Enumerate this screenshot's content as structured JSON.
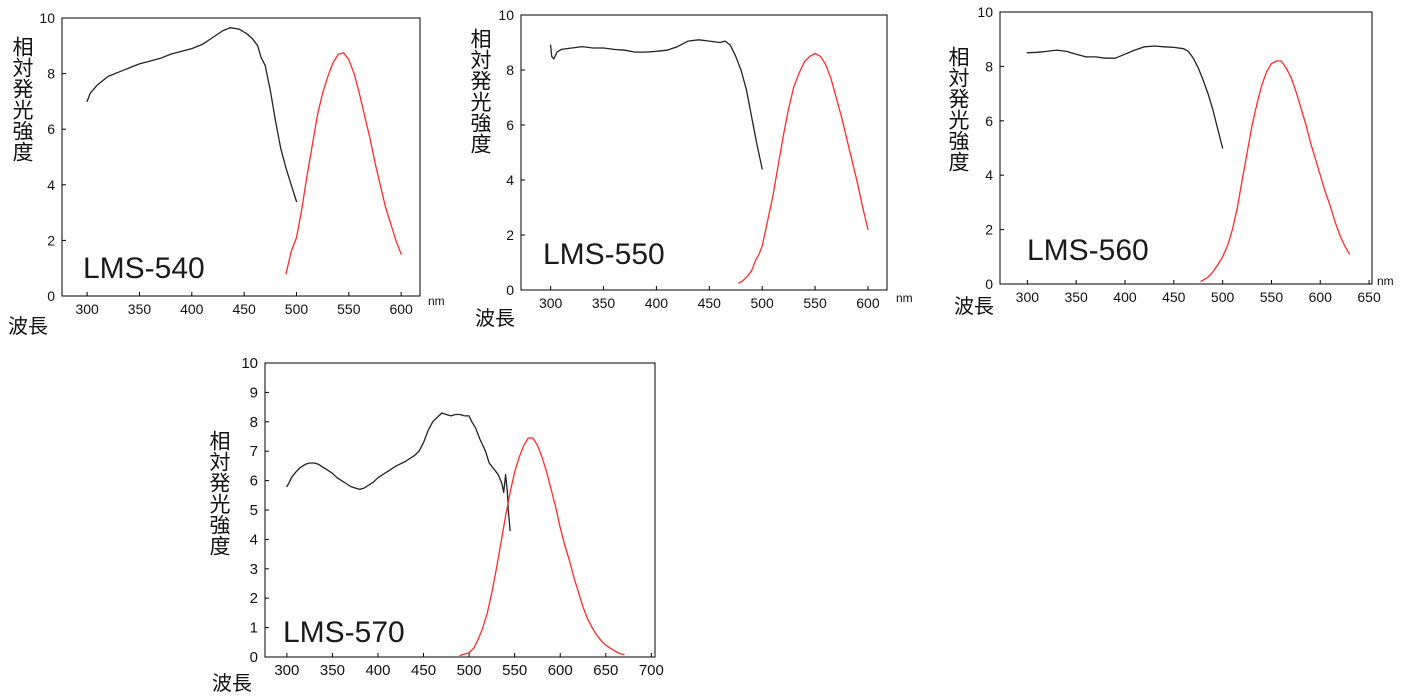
{
  "chart_data": [
    {
      "type": "line",
      "annotation": "LMS-540",
      "ylabel": "相対発光強度",
      "xlabel": "波長",
      "x_unit": "nm",
      "xlim": [
        276,
        618
      ],
      "ylim": [
        0,
        10
      ],
      "x_ticks": [
        300,
        350,
        400,
        450,
        500,
        550,
        600
      ],
      "y_ticks": [
        0,
        2,
        4,
        6,
        8,
        10
      ],
      "grid": false,
      "series": [
        {
          "color": "#222222",
          "points": [
            [
              300,
              7.0
            ],
            [
              303,
              7.3
            ],
            [
              310,
              7.6
            ],
            [
              320,
              7.9
            ],
            [
              330,
              8.05
            ],
            [
              340,
              8.2
            ],
            [
              350,
              8.35
            ],
            [
              360,
              8.45
            ],
            [
              370,
              8.55
            ],
            [
              380,
              8.7
            ],
            [
              390,
              8.8
            ],
            [
              400,
              8.9
            ],
            [
              410,
              9.05
            ],
            [
              420,
              9.3
            ],
            [
              430,
              9.55
            ],
            [
              437,
              9.65
            ],
            [
              445,
              9.6
            ],
            [
              452,
              9.45
            ],
            [
              458,
              9.25
            ],
            [
              463,
              9.0
            ],
            [
              466,
              8.6
            ],
            [
              470,
              8.3
            ],
            [
              475,
              7.4
            ],
            [
              480,
              6.3
            ],
            [
              485,
              5.3
            ],
            [
              490,
              4.6
            ],
            [
              495,
              4.0
            ],
            [
              500,
              3.4
            ]
          ]
        },
        {
          "color": "#ff2a2a",
          "points": [
            [
              490,
              0.8
            ],
            [
              495,
              1.6
            ],
            [
              500,
              2.1
            ],
            [
              505,
              3.1
            ],
            [
              510,
              4.3
            ],
            [
              515,
              5.4
            ],
            [
              520,
              6.5
            ],
            [
              525,
              7.3
            ],
            [
              530,
              7.9
            ],
            [
              535,
              8.4
            ],
            [
              540,
              8.7
            ],
            [
              545,
              8.75
            ],
            [
              550,
              8.5
            ],
            [
              555,
              8.0
            ],
            [
              560,
              7.3
            ],
            [
              565,
              6.5
            ],
            [
              570,
              5.7
            ],
            [
              575,
              4.8
            ],
            [
              580,
              4.0
            ],
            [
              585,
              3.2
            ],
            [
              590,
              2.6
            ],
            [
              595,
              2.0
            ],
            [
              600,
              1.5
            ]
          ]
        }
      ]
    },
    {
      "type": "line",
      "annotation": "LMS-550",
      "ylabel": "相対発光強度",
      "xlabel": "波長",
      "x_unit": "nm",
      "xlim": [
        272,
        618
      ],
      "ylim": [
        0,
        10
      ],
      "x_ticks": [
        300,
        350,
        400,
        450,
        500,
        550,
        600
      ],
      "y_ticks": [
        0,
        2,
        4,
        6,
        8,
        10
      ],
      "grid": false,
      "series": [
        {
          "color": "#222222",
          "points": [
            [
              300,
              8.9
            ],
            [
              301,
              8.5
            ],
            [
              303,
              8.4
            ],
            [
              306,
              8.65
            ],
            [
              310,
              8.75
            ],
            [
              320,
              8.8
            ],
            [
              330,
              8.85
            ],
            [
              340,
              8.8
            ],
            [
              350,
              8.8
            ],
            [
              360,
              8.75
            ],
            [
              370,
              8.72
            ],
            [
              380,
              8.65
            ],
            [
              390,
              8.65
            ],
            [
              400,
              8.68
            ],
            [
              410,
              8.72
            ],
            [
              420,
              8.85
            ],
            [
              430,
              9.05
            ],
            [
              440,
              9.1
            ],
            [
              450,
              9.05
            ],
            [
              460,
              9.0
            ],
            [
              465,
              9.05
            ],
            [
              470,
              8.9
            ],
            [
              475,
              8.5
            ],
            [
              480,
              8.0
            ],
            [
              485,
              7.3
            ],
            [
              490,
              6.3
            ],
            [
              495,
              5.3
            ],
            [
              500,
              4.4
            ]
          ]
        },
        {
          "color": "#ff2a2a",
          "points": [
            [
              478,
              0.25
            ],
            [
              482,
              0.35
            ],
            [
              486,
              0.5
            ],
            [
              490,
              0.7
            ],
            [
              494,
              1.1
            ],
            [
              497,
              1.3
            ],
            [
              500,
              1.6
            ],
            [
              505,
              2.5
            ],
            [
              510,
              3.4
            ],
            [
              515,
              4.5
            ],
            [
              520,
              5.6
            ],
            [
              525,
              6.6
            ],
            [
              530,
              7.4
            ],
            [
              535,
              7.9
            ],
            [
              540,
              8.3
            ],
            [
              545,
              8.5
            ],
            [
              550,
              8.6
            ],
            [
              555,
              8.5
            ],
            [
              560,
              8.2
            ],
            [
              565,
              7.7
            ],
            [
              570,
              7.0
            ],
            [
              575,
              6.3
            ],
            [
              580,
              5.5
            ],
            [
              585,
              4.7
            ],
            [
              590,
              3.9
            ],
            [
              595,
              3.0
            ],
            [
              600,
              2.2
            ]
          ]
        }
      ]
    },
    {
      "type": "line",
      "annotation": "LMS-560",
      "ylabel": "相対発光強度",
      "xlabel": "波長",
      "x_unit": "nm",
      "xlim": [
        272,
        653
      ],
      "ylim": [
        0,
        10
      ],
      "x_ticks": [
        300,
        350,
        400,
        450,
        500,
        550,
        600,
        650
      ],
      "y_ticks": [
        0,
        2,
        4,
        6,
        8,
        10
      ],
      "grid": false,
      "series": [
        {
          "color": "#222222",
          "points": [
            [
              300,
              8.5
            ],
            [
              310,
              8.52
            ],
            [
              320,
              8.55
            ],
            [
              330,
              8.6
            ],
            [
              340,
              8.55
            ],
            [
              350,
              8.45
            ],
            [
              360,
              8.35
            ],
            [
              370,
              8.35
            ],
            [
              380,
              8.3
            ],
            [
              390,
              8.3
            ],
            [
              400,
              8.45
            ],
            [
              410,
              8.6
            ],
            [
              420,
              8.72
            ],
            [
              430,
              8.75
            ],
            [
              440,
              8.72
            ],
            [
              450,
              8.7
            ],
            [
              460,
              8.65
            ],
            [
              465,
              8.55
            ],
            [
              470,
              8.3
            ],
            [
              475,
              7.95
            ],
            [
              480,
              7.5
            ],
            [
              485,
              7.0
            ],
            [
              490,
              6.4
            ],
            [
              495,
              5.7
            ],
            [
              500,
              5.0
            ]
          ]
        },
        {
          "color": "#ff2a2a",
          "points": [
            [
              478,
              0.1
            ],
            [
              485,
              0.25
            ],
            [
              490,
              0.45
            ],
            [
              495,
              0.7
            ],
            [
              500,
              1.0
            ],
            [
              505,
              1.4
            ],
            [
              510,
              2.0
            ],
            [
              515,
              2.8
            ],
            [
              520,
              3.8
            ],
            [
              525,
              4.8
            ],
            [
              530,
              5.8
            ],
            [
              535,
              6.6
            ],
            [
              540,
              7.3
            ],
            [
              545,
              7.8
            ],
            [
              550,
              8.1
            ],
            [
              555,
              8.2
            ],
            [
              560,
              8.2
            ],
            [
              565,
              7.95
            ],
            [
              570,
              7.6
            ],
            [
              575,
              7.1
            ],
            [
              580,
              6.5
            ],
            [
              585,
              5.9
            ],
            [
              590,
              5.2
            ],
            [
              595,
              4.6
            ],
            [
              600,
              4.0
            ],
            [
              605,
              3.4
            ],
            [
              610,
              2.9
            ],
            [
              615,
              2.3
            ],
            [
              620,
              1.8
            ],
            [
              625,
              1.4
            ],
            [
              630,
              1.1
            ]
          ]
        }
      ]
    },
    {
      "type": "line",
      "annotation": "LMS-570",
      "ylabel": "相対発光強度",
      "xlabel": "波長",
      "xlim": [
        276,
        704
      ],
      "ylim": [
        0,
        10
      ],
      "x_ticks": [
        300,
        350,
        400,
        450,
        500,
        550,
        600,
        650,
        700
      ],
      "y_ticks": [
        0,
        1,
        2,
        3,
        4,
        5,
        6,
        7,
        8,
        9,
        10
      ],
      "grid": false,
      "series": [
        {
          "color": "#222222",
          "points": [
            [
              300,
              5.8
            ],
            [
              302,
              5.9
            ],
            [
              305,
              6.1
            ],
            [
              310,
              6.3
            ],
            [
              315,
              6.45
            ],
            [
              320,
              6.55
            ],
            [
              325,
              6.6
            ],
            [
              330,
              6.6
            ],
            [
              335,
              6.55
            ],
            [
              340,
              6.45
            ],
            [
              345,
              6.35
            ],
            [
              350,
              6.25
            ],
            [
              355,
              6.1
            ],
            [
              360,
              6.0
            ],
            [
              365,
              5.9
            ],
            [
              370,
              5.8
            ],
            [
              375,
              5.75
            ],
            [
              380,
              5.7
            ],
            [
              385,
              5.75
            ],
            [
              390,
              5.85
            ],
            [
              395,
              5.95
            ],
            [
              400,
              6.1
            ],
            [
              410,
              6.3
            ],
            [
              420,
              6.5
            ],
            [
              430,
              6.65
            ],
            [
              440,
              6.85
            ],
            [
              445,
              7.0
            ],
            [
              450,
              7.3
            ],
            [
              455,
              7.7
            ],
            [
              460,
              8.0
            ],
            [
              465,
              8.15
            ],
            [
              470,
              8.3
            ],
            [
              475,
              8.25
            ],
            [
              480,
              8.2
            ],
            [
              485,
              8.25
            ],
            [
              490,
              8.25
            ],
            [
              495,
              8.2
            ],
            [
              500,
              8.2
            ],
            [
              503,
              8.0
            ],
            [
              507,
              7.8
            ],
            [
              512,
              7.4
            ],
            [
              518,
              7.0
            ],
            [
              522,
              6.6
            ],
            [
              527,
              6.4
            ],
            [
              532,
              6.2
            ],
            [
              536,
              5.9
            ],
            [
              538,
              5.6
            ],
            [
              540,
              6.2
            ],
            [
              542,
              5.6
            ],
            [
              543,
              5.0
            ],
            [
              545,
              4.3
            ]
          ]
        },
        {
          "color": "#ff2a2a",
          "points": [
            [
              490,
              0.05
            ],
            [
              500,
              0.15
            ],
            [
              505,
              0.3
            ],
            [
              510,
              0.6
            ],
            [
              515,
              1.0
            ],
            [
              520,
              1.5
            ],
            [
              525,
              2.2
            ],
            [
              530,
              3.0
            ],
            [
              535,
              3.9
            ],
            [
              540,
              4.8
            ],
            [
              545,
              5.6
            ],
            [
              550,
              6.3
            ],
            [
              555,
              6.8
            ],
            [
              560,
              7.2
            ],
            [
              565,
              7.45
            ],
            [
              570,
              7.45
            ],
            [
              575,
              7.2
            ],
            [
              580,
              6.8
            ],
            [
              585,
              6.3
            ],
            [
              590,
              5.7
            ],
            [
              595,
              5.1
            ],
            [
              600,
              4.4
            ],
            [
              605,
              3.8
            ],
            [
              610,
              3.3
            ],
            [
              615,
              2.7
            ],
            [
              620,
              2.2
            ],
            [
              625,
              1.7
            ],
            [
              630,
              1.3
            ],
            [
              635,
              1.0
            ],
            [
              640,
              0.75
            ],
            [
              645,
              0.55
            ],
            [
              650,
              0.4
            ],
            [
              655,
              0.3
            ],
            [
              660,
              0.2
            ],
            [
              665,
              0.12
            ],
            [
              670,
              0.08
            ]
          ]
        }
      ]
    }
  ]
}
